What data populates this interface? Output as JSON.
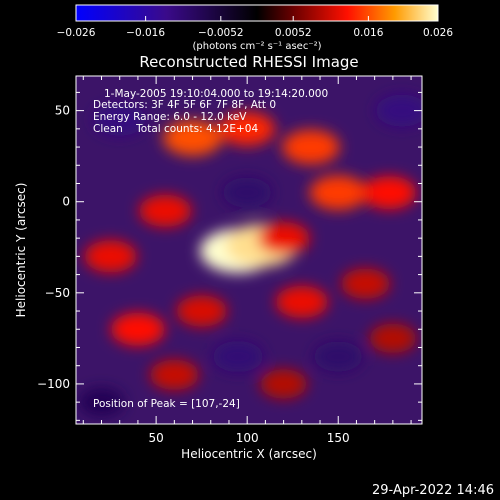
{
  "chart_data": {
    "type": "heatmap",
    "title": "Reconstructed RHESSI Image",
    "xlabel": "Heliocentric X (arcsec)",
    "ylabel": "Heliocentric Y (arcsec)",
    "xlim": [
      6,
      196
    ],
    "ylim": [
      -122,
      69
    ],
    "xticks": [
      50,
      100,
      150
    ],
    "yticks": [
      -100,
      -50,
      0,
      50
    ],
    "colorbar": {
      "min": -0.026,
      "max": 0.026,
      "ticks": [
        "-0.026",
        "-0.016",
        "-0.0052",
        "0.0052",
        "0.016",
        "0.026"
      ],
      "unit_label": "(photons cm⁻² s⁻¹ asec⁻²)"
    },
    "annotations": [
      "1-May-2005 19:10:04.000 to 19:14:20.000",
      "Detectors: 3F 4F 5F 6F 7F 8F, Att 0",
      "Energy Range: 6.0 - 12.0 keV",
      "Clean    Total counts: 4.12E+04"
    ],
    "peak_label": "Position of Peak = [107,-24]",
    "peak": [
      107,
      -24
    ],
    "sources": [
      {
        "x": 95,
        "y": -27,
        "intensity": 0.026
      },
      {
        "x": 108,
        "y": -24,
        "intensity": 0.024
      },
      {
        "x": 120,
        "y": -20,
        "intensity": 0.012
      },
      {
        "x": 70,
        "y": 35,
        "intensity": 0.016
      },
      {
        "x": 100,
        "y": 40,
        "intensity": 0.014
      },
      {
        "x": 135,
        "y": 30,
        "intensity": 0.015
      },
      {
        "x": 150,
        "y": 5,
        "intensity": 0.015
      },
      {
        "x": 178,
        "y": 5,
        "intensity": 0.013
      },
      {
        "x": 55,
        "y": -5,
        "intensity": 0.012
      },
      {
        "x": 25,
        "y": -30,
        "intensity": 0.012
      },
      {
        "x": 40,
        "y": -70,
        "intensity": 0.013
      },
      {
        "x": 75,
        "y": -60,
        "intensity": 0.011
      },
      {
        "x": 130,
        "y": -55,
        "intensity": 0.012
      },
      {
        "x": 165,
        "y": -45,
        "intensity": 0.01
      },
      {
        "x": 60,
        "y": -95,
        "intensity": 0.01
      },
      {
        "x": 120,
        "y": -100,
        "intensity": 0.009
      },
      {
        "x": 180,
        "y": -75,
        "intensity": 0.009
      },
      {
        "x": 30,
        "y": 45,
        "intensity": -0.012
      },
      {
        "x": 185,
        "y": 50,
        "intensity": -0.012
      },
      {
        "x": 100,
        "y": 5,
        "intensity": -0.01
      },
      {
        "x": 150,
        "y": -85,
        "intensity": -0.01
      },
      {
        "x": 95,
        "y": -85,
        "intensity": -0.011
      },
      {
        "x": 20,
        "y": -110,
        "intensity": -0.008
      }
    ]
  },
  "footer": {
    "timestamp": "29-Apr-2022 14:46"
  }
}
